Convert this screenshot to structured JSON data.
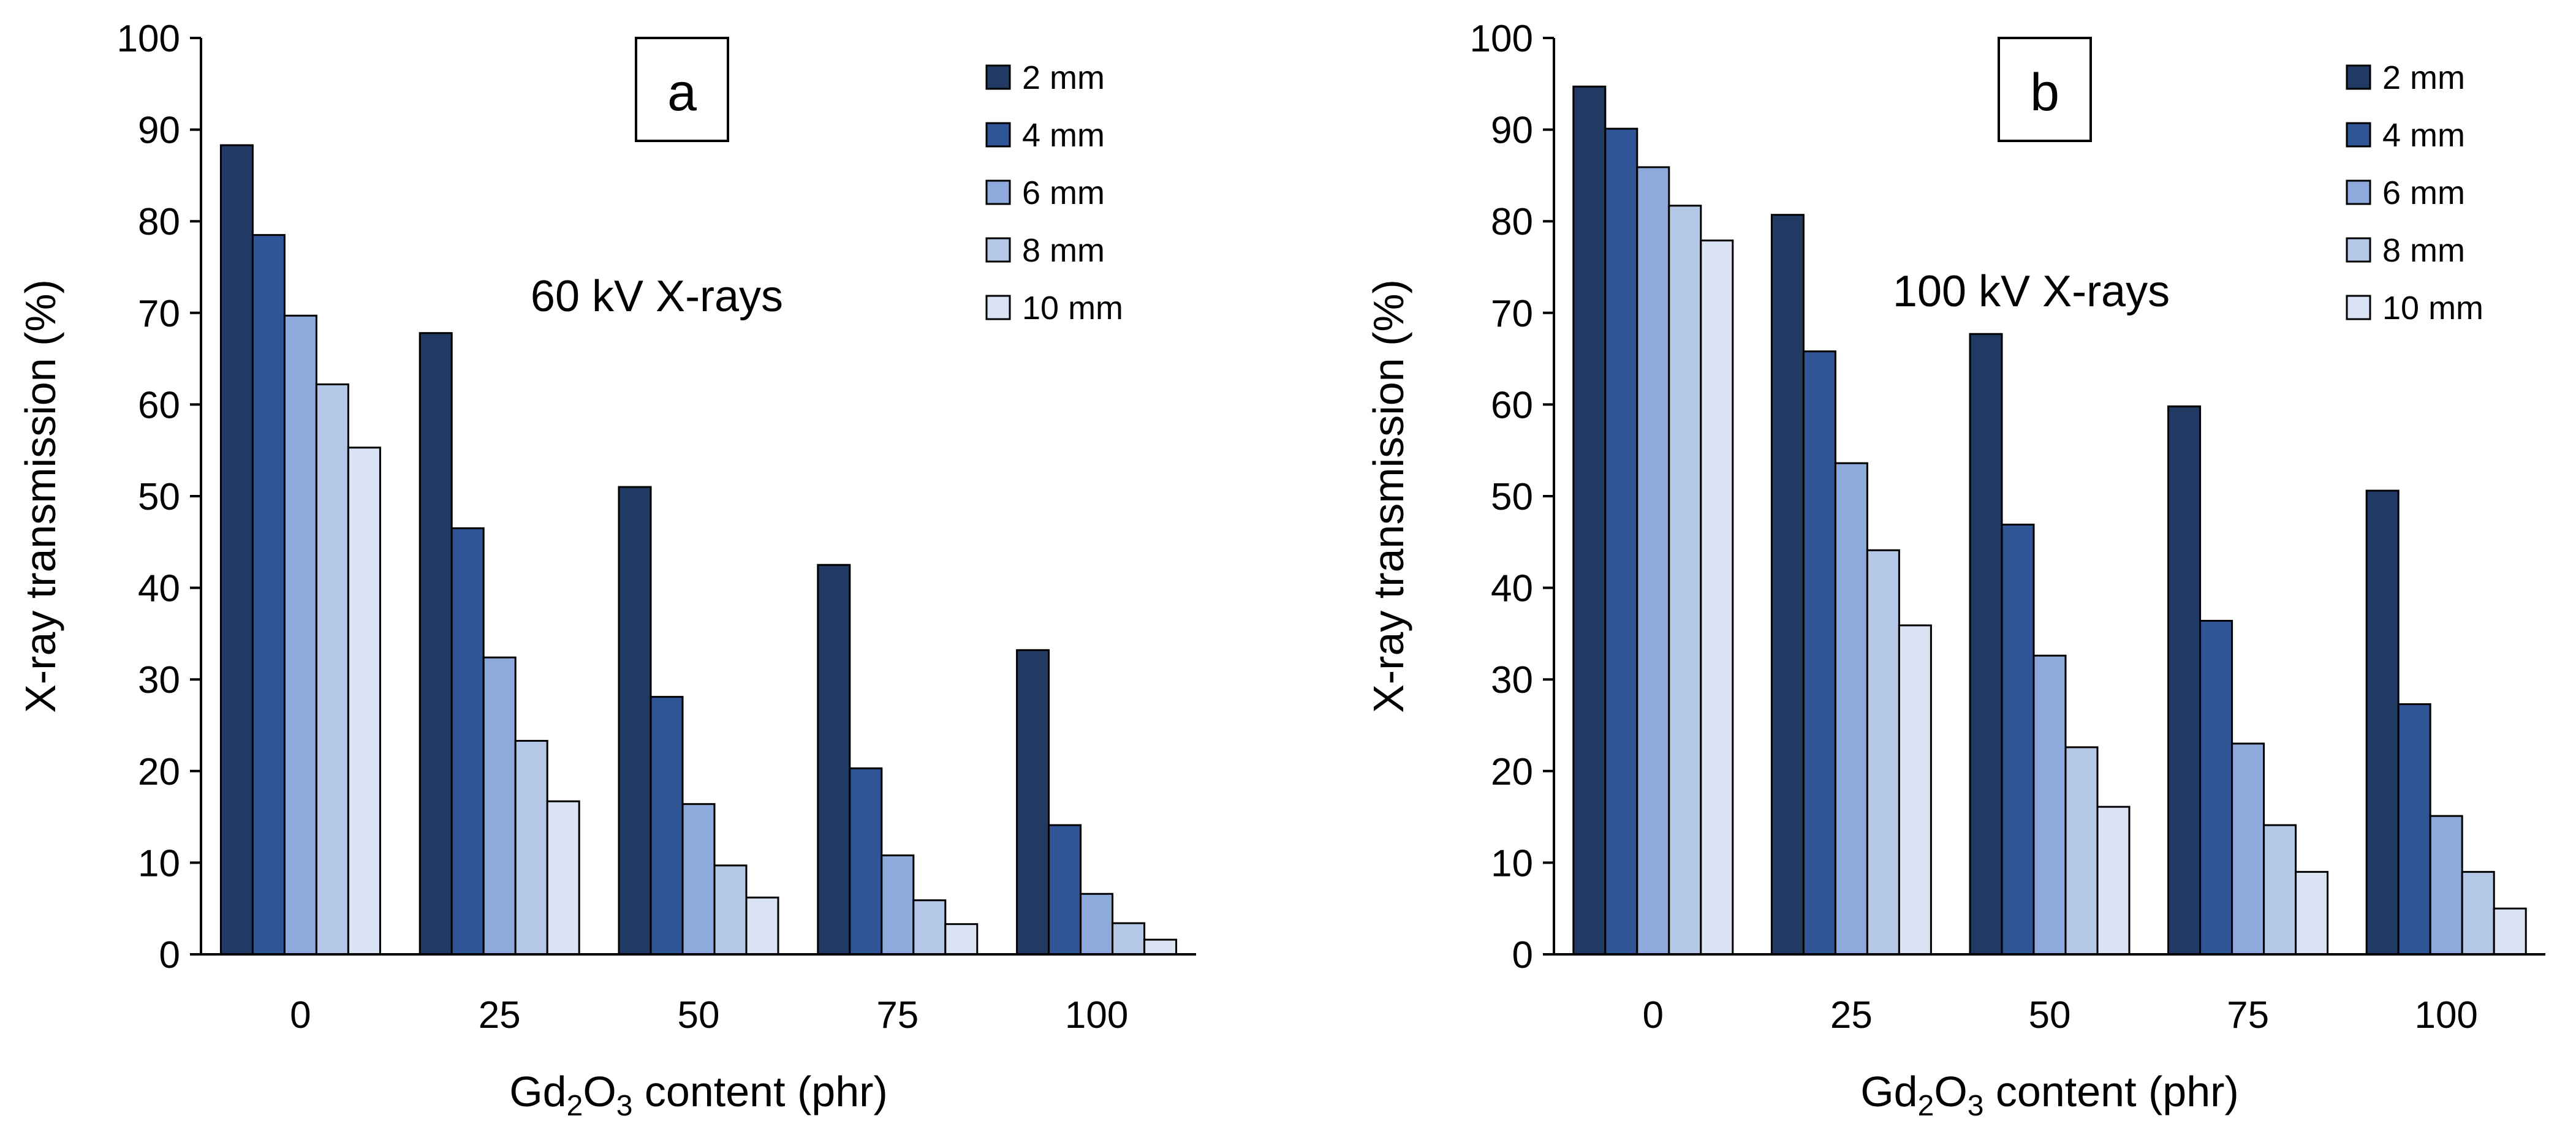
{
  "chart_data": [
    {
      "type": "bar",
      "panel_label": "a",
      "annotation": "60 kV X-rays",
      "categories": [
        "0",
        "25",
        "50",
        "75",
        "100"
      ],
      "series": [
        {
          "name": "2 mm",
          "values": [
            88.3,
            67.8,
            51.0,
            42.5,
            33.2
          ]
        },
        {
          "name": "4 mm",
          "values": [
            78.5,
            46.5,
            28.1,
            20.3,
            14.1
          ]
        },
        {
          "name": "6 mm",
          "values": [
            69.7,
            32.4,
            16.4,
            10.8,
            6.6
          ]
        },
        {
          "name": "8 mm",
          "values": [
            62.2,
            23.3,
            9.7,
            5.9,
            3.4
          ]
        },
        {
          "name": "10 mm",
          "values": [
            55.3,
            16.7,
            6.2,
            3.3,
            1.6
          ]
        }
      ],
      "xlabel_parts": [
        "Gd",
        "2",
        "O",
        "3",
        " content (phr)"
      ],
      "ylabel": "X-ray transmission (%)",
      "ylim": [
        0,
        100
      ],
      "yticks": [
        "0",
        "10",
        "20",
        "30",
        "40",
        "50",
        "60",
        "70",
        "80",
        "90",
        "100"
      ],
      "legend_position": "top-right"
    },
    {
      "type": "bar",
      "panel_label": "b",
      "annotation": "100 kV X-rays",
      "categories": [
        "0",
        "25",
        "50",
        "75",
        "100"
      ],
      "series": [
        {
          "name": "2 mm",
          "values": [
            94.7,
            80.7,
            67.7,
            59.8,
            50.6
          ]
        },
        {
          "name": "4 mm",
          "values": [
            90.1,
            65.8,
            46.9,
            36.4,
            27.3
          ]
        },
        {
          "name": "6 mm",
          "values": [
            85.9,
            53.6,
            32.6,
            23.0,
            15.1
          ]
        },
        {
          "name": "8 mm",
          "values": [
            81.7,
            44.1,
            22.6,
            14.1,
            9.0
          ]
        },
        {
          "name": "10 mm",
          "values": [
            77.9,
            35.9,
            16.1,
            9.0,
            5.0
          ]
        }
      ],
      "xlabel_parts": [
        "Gd",
        "2",
        "O",
        "3",
        " content (phr)"
      ],
      "ylabel": "X-ray transmission (%)",
      "ylim": [
        0,
        100
      ],
      "yticks": [
        "0",
        "10",
        "20",
        "30",
        "40",
        "50",
        "60",
        "70",
        "80",
        "90",
        "100"
      ],
      "legend_position": "top-right"
    }
  ],
  "colors": {
    "series": [
      "#213A64",
      "#2F5597",
      "#8EA9DB",
      "#B4C7E7",
      "#DAE3F3"
    ],
    "outline": "#000000"
  }
}
